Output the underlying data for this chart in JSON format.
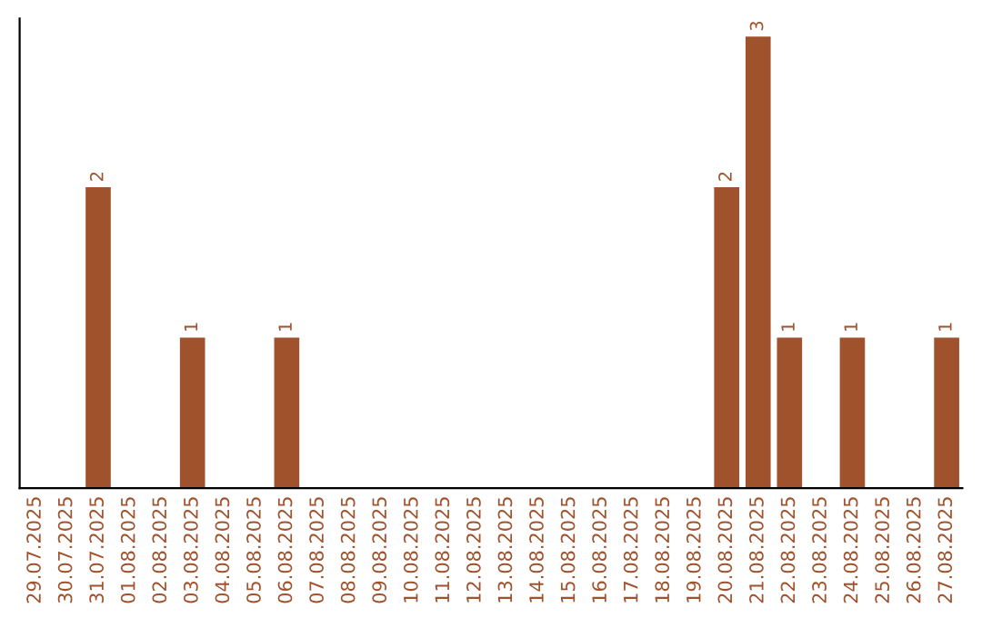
{
  "chart_data": {
    "type": "bar",
    "categories": [
      "29.07.2025",
      "30.07.2025",
      "31.07.2025",
      "01.08.2025",
      "02.08.2025",
      "03.08.2025",
      "04.08.2025",
      "05.08.2025",
      "06.08.2025",
      "07.08.2025",
      "08.08.2025",
      "09.08.2025",
      "10.08.2025",
      "11.08.2025",
      "12.08.2025",
      "13.08.2025",
      "14.08.2025",
      "15.08.2025",
      "16.08.2025",
      "17.08.2025",
      "18.08.2025",
      "19.08.2025",
      "20.08.2025",
      "21.08.2025",
      "22.08.2025",
      "23.08.2025",
      "24.08.2025",
      "25.08.2025",
      "26.08.2025",
      "27.08.2025"
    ],
    "values": [
      0,
      0,
      2,
      0,
      0,
      1,
      0,
      0,
      1,
      0,
      0,
      0,
      0,
      0,
      0,
      0,
      0,
      0,
      0,
      0,
      0,
      0,
      2,
      3,
      1,
      0,
      1,
      0,
      0,
      1
    ],
    "value_labels": [
      null,
      null,
      "2",
      null,
      null,
      "1",
      null,
      null,
      "1",
      null,
      null,
      null,
      null,
      null,
      null,
      null,
      null,
      null,
      null,
      null,
      null,
      null,
      "2",
      "3",
      "1",
      null,
      "1",
      null,
      null,
      "1"
    ],
    "color": "#a0522d",
    "tick_labels": "x",
    "grid": false
  }
}
